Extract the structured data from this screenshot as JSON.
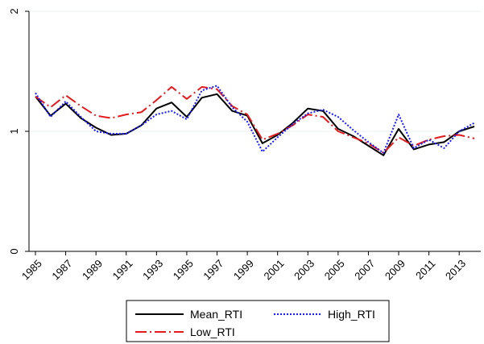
{
  "chart_data": {
    "type": "line",
    "title": "",
    "xlabel": "",
    "ylabel": "",
    "x": [
      1985,
      1986,
      1987,
      1988,
      1989,
      1990,
      1991,
      1992,
      1993,
      1994,
      1995,
      1996,
      1997,
      1998,
      1999,
      2000,
      2001,
      2002,
      2003,
      2004,
      2005,
      2006,
      2007,
      2008,
      2009,
      2010,
      2011,
      2012,
      2013,
      2014
    ],
    "xlim": [
      1985,
      2014
    ],
    "ylim": [
      0,
      2
    ],
    "x_ticks": [
      "1985",
      "1987",
      "1989",
      "1991",
      "1993",
      "1995",
      "1997",
      "1999",
      "2001",
      "2003",
      "2005",
      "2007",
      "2009",
      "2011",
      "2013"
    ],
    "y_ticks": [
      "0",
      "1",
      "2"
    ],
    "grid": "horizontal",
    "legend_position": "bottom",
    "series": [
      {
        "name": "Mean_RTI",
        "color": "#000000",
        "dash": "solid",
        "values": [
          1.29,
          1.13,
          1.23,
          1.11,
          1.03,
          0.97,
          0.98,
          1.05,
          1.19,
          1.24,
          1.12,
          1.28,
          1.31,
          1.17,
          1.13,
          0.9,
          0.97,
          1.07,
          1.19,
          1.17,
          1.02,
          0.96,
          0.88,
          0.8,
          1.02,
          0.85,
          0.89,
          0.91,
          1.0,
          1.04
        ]
      },
      {
        "name": "Low_RTI",
        "color": "#e41a1c",
        "dash": "dashdot",
        "values": [
          1.29,
          1.2,
          1.3,
          1.21,
          1.13,
          1.11,
          1.14,
          1.16,
          1.26,
          1.37,
          1.27,
          1.37,
          1.35,
          1.21,
          1.14,
          0.93,
          0.98,
          1.05,
          1.14,
          1.12,
          1.0,
          0.95,
          0.9,
          0.82,
          0.95,
          0.88,
          0.93,
          0.96,
          0.97,
          0.94
        ]
      },
      {
        "name": "High_RTI",
        "color": "#1a1aff",
        "dash": "dotted",
        "values": [
          1.32,
          1.12,
          1.25,
          1.12,
          1.0,
          0.98,
          0.98,
          1.05,
          1.14,
          1.17,
          1.1,
          1.34,
          1.38,
          1.2,
          1.08,
          0.83,
          0.95,
          1.06,
          1.15,
          1.18,
          1.12,
          1.01,
          0.91,
          0.82,
          1.14,
          0.86,
          0.93,
          0.86,
          1.0,
          1.07
        ]
      }
    ],
    "legend": {
      "entries": [
        "Mean_RTI",
        "High_RTI",
        "Low_RTI"
      ]
    }
  }
}
